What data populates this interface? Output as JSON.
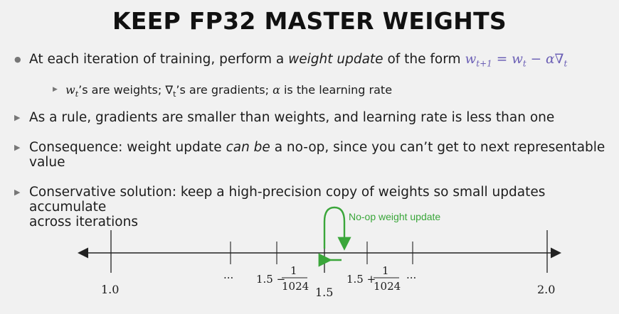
{
  "title": "KEEP FP32 MASTER WEIGHTS",
  "bullets": {
    "b1_pre": "At each iteration of training, perform a",
    "b1_em": "weight update",
    "b1_mid": "of the form",
    "b1_formula": "w",
    "b1_formula_sub1": "t+1",
    "b1_formula_eq": " = w",
    "b1_formula_sub2": "t",
    "b1_formula_rest": " − α∇",
    "b1_formula_sub3": "t",
    "b1_sub_w": "w",
    "b1_sub_wt": "t",
    "b1_sub_text1": "’s are weights; ∇",
    "b1_sub_gt": "t",
    "b1_sub_text2": "’s are gradients; ",
    "b1_sub_alpha": "α",
    "b1_sub_text3": " is the learning rate",
    "b2": "As a rule, gradients are smaller than weights, and learning rate is less than one",
    "b3_pre": "Consequence: weight update",
    "b3_em": "can be",
    "b3_post": "a no-op, since you can’t get to next representable",
    "b3_line2": "value",
    "b4_line1": "Conservative solution: keep a high-precision copy of weights so small updates accumulate",
    "b4_line2": "across iterations"
  },
  "diagram": {
    "noop_label": "No-op weight update",
    "label_1_0": "1.0",
    "label_1_5": "1.5",
    "label_2_0": "2.0",
    "label_minus_base": "1.5 −",
    "label_plus_base": "1.5 +",
    "frac_num": "1",
    "frac_den": "1024",
    "ellipsis": "···",
    "arrow_color": "#3aa63a"
  }
}
